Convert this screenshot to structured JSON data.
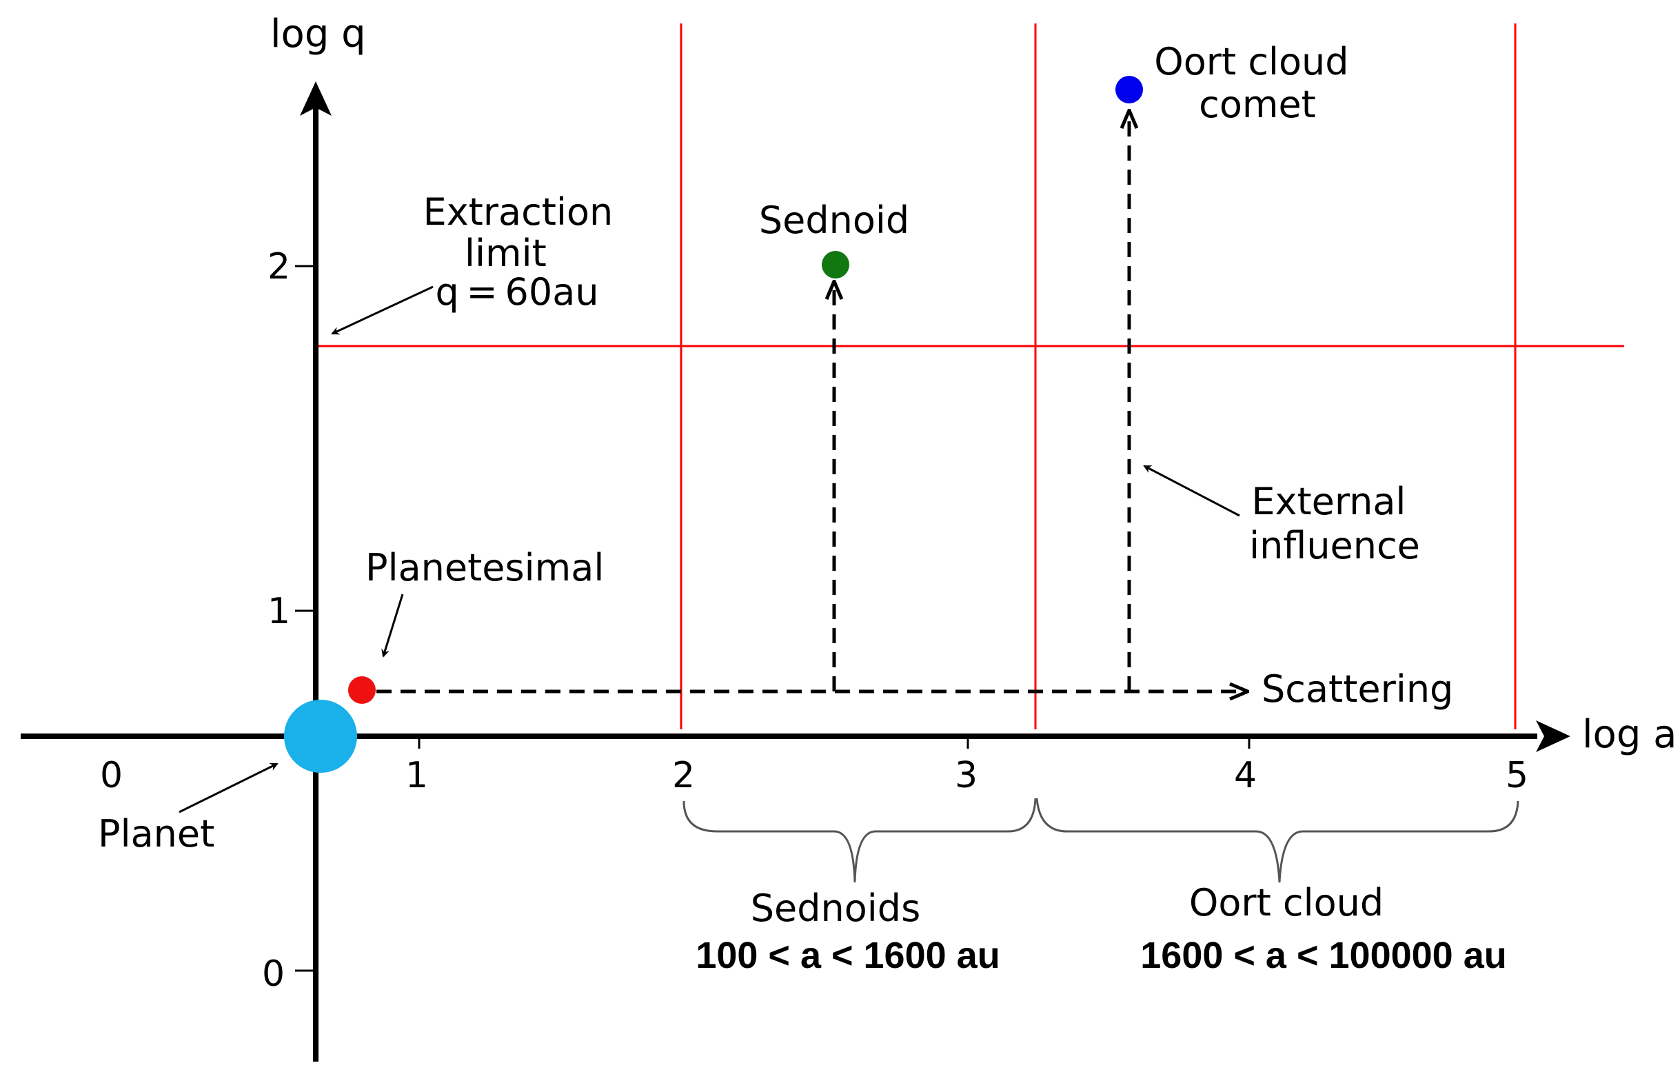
{
  "axes": {
    "x_label": "log a",
    "y_label": "log q",
    "x_ticks": [
      "0",
      "1",
      "2",
      "3",
      "4",
      "5"
    ],
    "y_ticks": [
      "2",
      "1",
      "0"
    ]
  },
  "labels": {
    "extraction": [
      "Extraction",
      "limit",
      "q = 60au"
    ],
    "sednoid": "Sednoid",
    "oort_comet": [
      "Oort cloud",
      "comet"
    ],
    "external": [
      "External",
      "influence"
    ],
    "planetesimal": "Planetesimal",
    "scattering": "Scattering",
    "planet": "Planet",
    "sednoids_range": "Sednoids",
    "sednoids_range_value": "100 < a < 1600 au",
    "oort_range": "Oort cloud",
    "oort_range_value": "1600 < a < 100000 au"
  },
  "colors": {
    "axis": "#000000",
    "boundary": "#ff0000",
    "planet": "#1ab0ea",
    "planetesimal": "#ee1111",
    "sednoid": "#117711",
    "oort_comet": "#0000ee"
  }
}
